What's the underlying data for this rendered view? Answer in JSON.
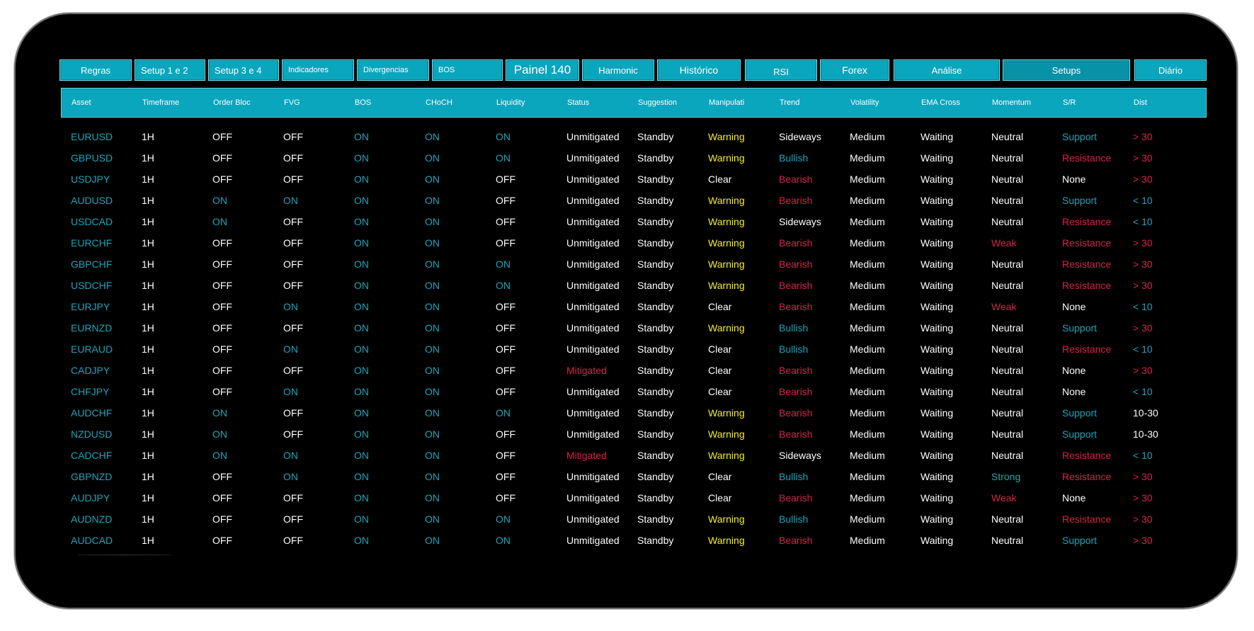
{
  "tabs": [
    {
      "label": "Regras"
    },
    {
      "label": "Setup 1 e 2"
    },
    {
      "label": "Setup 3 e 4"
    },
    {
      "label": "Indicadores"
    },
    {
      "label": "Divergencias"
    },
    {
      "label": "BOS"
    },
    {
      "label": "Painel 140"
    },
    {
      "label": "Harmonic"
    },
    {
      "label": "Histórico"
    },
    {
      "label": "RSI"
    },
    {
      "label": "Forex"
    },
    {
      "label": "Análise"
    },
    {
      "label": "Setups"
    },
    {
      "label": "Diário"
    }
  ],
  "table": {
    "headers": [
      "Asset",
      "Timeframe",
      "Order Bloc",
      "FVG",
      "BOS",
      "CHoCH",
      "Liquidity",
      "Status",
      "Suggestion",
      "Manipulati",
      "Trend",
      "Volatility",
      "EMA Cross",
      "Momentum",
      "S/R",
      "Dist"
    ],
    "rows": [
      [
        "EURUSD",
        "1H",
        "OFF",
        "OFF",
        "ON",
        "ON",
        "ON",
        "Unmitigated",
        "Standby",
        "Warning",
        "Sideways",
        "Medium",
        "Waiting",
        "Neutral",
        "Support",
        "> 30"
      ],
      [
        "GBPUSD",
        "1H",
        "OFF",
        "OFF",
        "ON",
        "ON",
        "ON",
        "Unmitigated",
        "Standby",
        "Warning",
        "Bullish",
        "Medium",
        "Waiting",
        "Neutral",
        "Resistance",
        "> 30"
      ],
      [
        "USDJPY",
        "1H",
        "OFF",
        "OFF",
        "ON",
        "ON",
        "OFF",
        "Unmitigated",
        "Standby",
        "Clear",
        "Bearish",
        "Medium",
        "Waiting",
        "Neutral",
        "None",
        "> 30"
      ],
      [
        "AUDUSD",
        "1H",
        "ON",
        "ON",
        "ON",
        "ON",
        "OFF",
        "Unmitigated",
        "Standby",
        "Warning",
        "Bearish",
        "Medium",
        "Waiting",
        "Neutral",
        "Support",
        "< 10"
      ],
      [
        "USDCAD",
        "1H",
        "ON",
        "OFF",
        "ON",
        "ON",
        "OFF",
        "Unmitigated",
        "Standby",
        "Warning",
        "Sideways",
        "Medium",
        "Waiting",
        "Neutral",
        "Resistance",
        "< 10"
      ],
      [
        "EURCHF",
        "1H",
        "OFF",
        "OFF",
        "ON",
        "ON",
        "OFF",
        "Unmitigated",
        "Standby",
        "Warning",
        "Bearish",
        "Medium",
        "Waiting",
        "Weak",
        "Resistance",
        "> 30"
      ],
      [
        "GBPCHF",
        "1H",
        "OFF",
        "OFF",
        "ON",
        "ON",
        "ON",
        "Unmitigated",
        "Standby",
        "Warning",
        "Bearish",
        "Medium",
        "Waiting",
        "Neutral",
        "Resistance",
        "> 30"
      ],
      [
        "USDCHF",
        "1H",
        "OFF",
        "OFF",
        "ON",
        "ON",
        "ON",
        "Unmitigated",
        "Standby",
        "Warning",
        "Bearish",
        "Medium",
        "Waiting",
        "Neutral",
        "Resistance",
        "> 30"
      ],
      [
        "EURJPY",
        "1H",
        "OFF",
        "ON",
        "ON",
        "ON",
        "OFF",
        "Unmitigated",
        "Standby",
        "Clear",
        "Bearish",
        "Medium",
        "Waiting",
        "Weak",
        "None",
        "< 10"
      ],
      [
        "EURNZD",
        "1H",
        "OFF",
        "OFF",
        "ON",
        "ON",
        "OFF",
        "Unmitigated",
        "Standby",
        "Warning",
        "Bullish",
        "Medium",
        "Waiting",
        "Neutral",
        "Support",
        "> 30"
      ],
      [
        "EURAUD",
        "1H",
        "OFF",
        "ON",
        "ON",
        "ON",
        "OFF",
        "Unmitigated",
        "Standby",
        "Clear",
        "Bullish",
        "Medium",
        "Waiting",
        "Neutral",
        "Resistance",
        "< 10"
      ],
      [
        "CADJPY",
        "1H",
        "OFF",
        "OFF",
        "ON",
        "ON",
        "OFF",
        "Mitigated",
        "Standby",
        "Clear",
        "Bearish",
        "Medium",
        "Waiting",
        "Neutral",
        "None",
        "> 30"
      ],
      [
        "CHFJPY",
        "1H",
        "OFF",
        "ON",
        "ON",
        "ON",
        "OFF",
        "Unmitigated",
        "Standby",
        "Clear",
        "Bearish",
        "Medium",
        "Waiting",
        "Neutral",
        "None",
        "< 10"
      ],
      [
        "AUDCHF",
        "1H",
        "ON",
        "OFF",
        "ON",
        "ON",
        "ON",
        "Unmitigated",
        "Standby",
        "Warning",
        "Bearish",
        "Medium",
        "Waiting",
        "Neutral",
        "Support",
        "10-30"
      ],
      [
        "NZDUSD",
        "1H",
        "ON",
        "OFF",
        "ON",
        "ON",
        "OFF",
        "Unmitigated",
        "Standby",
        "Warning",
        "Bearish",
        "Medium",
        "Waiting",
        "Neutral",
        "Support",
        "10-30"
      ],
      [
        "CADCHF",
        "1H",
        "ON",
        "ON",
        "ON",
        "ON",
        "OFF",
        "Mitigated",
        "Standby",
        "Warning",
        "Sideways",
        "Medium",
        "Waiting",
        "Neutral",
        "Resistance",
        "< 10"
      ],
      [
        "GBPNZD",
        "1H",
        "OFF",
        "ON",
        "ON",
        "ON",
        "OFF",
        "Unmitigated",
        "Standby",
        "Clear",
        "Bullish",
        "Medium",
        "Waiting",
        "Strong",
        "Resistance",
        "> 30"
      ],
      [
        "AUDJPY",
        "1H",
        "OFF",
        "OFF",
        "ON",
        "ON",
        "OFF",
        "Unmitigated",
        "Standby",
        "Clear",
        "Bearish",
        "Medium",
        "Waiting",
        "Weak",
        "None",
        "> 30"
      ],
      [
        "AUDNZD",
        "1H",
        "OFF",
        "OFF",
        "ON",
        "ON",
        "ON",
        "Unmitigated",
        "Standby",
        "Warning",
        "Bullish",
        "Medium",
        "Waiting",
        "Neutral",
        "Resistance",
        "> 30"
      ],
      [
        "AUDCAD",
        "1H",
        "OFF",
        "OFF",
        "ON",
        "ON",
        "ON",
        "Unmitigated",
        "Standby",
        "Warning",
        "Bearish",
        "Medium",
        "Waiting",
        "Neutral",
        "Support",
        "> 30"
      ]
    ]
  },
  "colors": {
    "accent": "#0aa6be",
    "on": "#1ea3b9",
    "negative": "#d4244a",
    "warning": "#f2ee2e",
    "positive": "#27a6a2",
    "text": "#ffffff",
    "background": "#000000"
  }
}
